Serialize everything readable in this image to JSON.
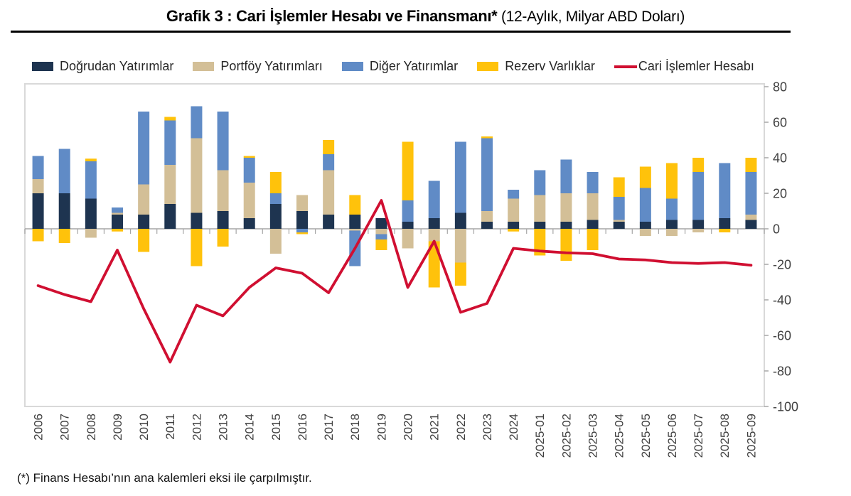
{
  "title": {
    "main": "Grafik 3 : Cari İşlemler Hesabı ve Finansmanı*",
    "subtitle": " (12-Aylık, Milyar ABD Doları)"
  },
  "footnote": "(*) Finans Hesabı’nın ana kalemleri eksi ile çarpılmıştır.",
  "colors": {
    "direct_investment": "#1E3450",
    "portfolio_investment": "#D3BF97",
    "other_investment": "#608BC6",
    "reserve_assets": "#FFC20B",
    "current_account_line": "#D00F31",
    "plot_frame": "#D9D9D9",
    "axis_line": "#A6A6A6",
    "tick_text": "#404040",
    "x_tick_text": "#3F3F3F"
  },
  "legend": [
    {
      "label": "Doğrudan Yatırımlar",
      "color": "#1E3450",
      "type": "box"
    },
    {
      "label": "Portföy Yatırımları",
      "color": "#D3BF97",
      "type": "box"
    },
    {
      "label": "Diğer Yatırımlar",
      "color": "#608BC6",
      "type": "box"
    },
    {
      "label": "Rezerv Varlıklar",
      "color": "#FFC20B",
      "type": "box"
    },
    {
      "label": "Cari İşlemler Hesabı",
      "color": "#D00F31",
      "type": "line"
    }
  ],
  "chart_data": {
    "type": "bar",
    "subtype": "stacked-bars-with-line",
    "title": "Grafik 3 : Cari İşlemler Hesabı ve Finansmanı* (12-Aylık, Milyar ABD Doları)",
    "xlabel": "",
    "ylabel": "Milyar ABD Doları",
    "ylim": [
      -100,
      80
    ],
    "yticks": [
      80,
      60,
      40,
      20,
      0,
      -20,
      -40,
      -60,
      -80,
      -100
    ],
    "yaxis_side": "right",
    "grid": false,
    "legend_position": "top",
    "x_tick_rotation": -90,
    "categories": [
      "2006",
      "2007",
      "2008",
      "2009",
      "2010",
      "2011",
      "2012",
      "2013",
      "2014",
      "2015",
      "2016",
      "2017",
      "2018",
      "2019",
      "2020",
      "2021",
      "2022",
      "2023",
      "2024",
      "2025-01",
      "2025-02",
      "2025-03",
      "2025-04",
      "2025-05",
      "2025-06",
      "2025-07",
      "2025-08",
      "2025-09"
    ],
    "series": [
      {
        "name": "Doğrudan Yatırımlar",
        "color": "#1E3450",
        "values": [
          20,
          20,
          17,
          8,
          8,
          14,
          9,
          10,
          6,
          14,
          10,
          8,
          8,
          6,
          4,
          6,
          9,
          4,
          4,
          4,
          4,
          5,
          4,
          4,
          5,
          5,
          6,
          5
        ]
      },
      {
        "name": "Portföy Yatırımları",
        "color": "#D3BF97",
        "values": [
          8,
          0,
          -5,
          1,
          17,
          22,
          42,
          23,
          20,
          -14,
          9,
          25,
          -1,
          -3,
          -11,
          -7,
          -19,
          6,
          13,
          15,
          16,
          15,
          1,
          -4,
          -4,
          -2,
          0,
          3
        ]
      },
      {
        "name": "Diğer Yatırımlar",
        "color": "#608BC6",
        "values": [
          13,
          25,
          21,
          3,
          41,
          25,
          18,
          33,
          14,
          6,
          -2,
          9,
          -20,
          -3,
          12,
          21,
          40,
          41,
          5,
          14,
          19,
          12,
          13,
          19,
          12,
          27,
          31,
          24
        ]
      },
      {
        "name": "Rezerv Varlıklar",
        "color": "#FFC20B",
        "values": [
          -7,
          -8,
          1.5,
          -1.5,
          -13,
          2,
          -21,
          -10,
          1,
          12,
          -1,
          8,
          11,
          -6,
          33,
          -26,
          -13,
          1,
          -1.5,
          -15,
          -18,
          -12,
          11,
          12,
          20,
          8,
          -2,
          8
        ]
      }
    ],
    "line_series": {
      "name": "Cari İşlemler Hesabı",
      "color": "#D00F31",
      "values": [
        -32,
        -37,
        -41,
        -12,
        -45,
        -75,
        -43,
        -49,
        -33,
        -22,
        -25,
        -36,
        -11,
        16,
        -33,
        -7,
        -47,
        -42,
        -11,
        -12.5,
        -13.5,
        -14,
        -17,
        -17.5,
        -19,
        -19.5,
        -19,
        -20.5
      ]
    }
  }
}
